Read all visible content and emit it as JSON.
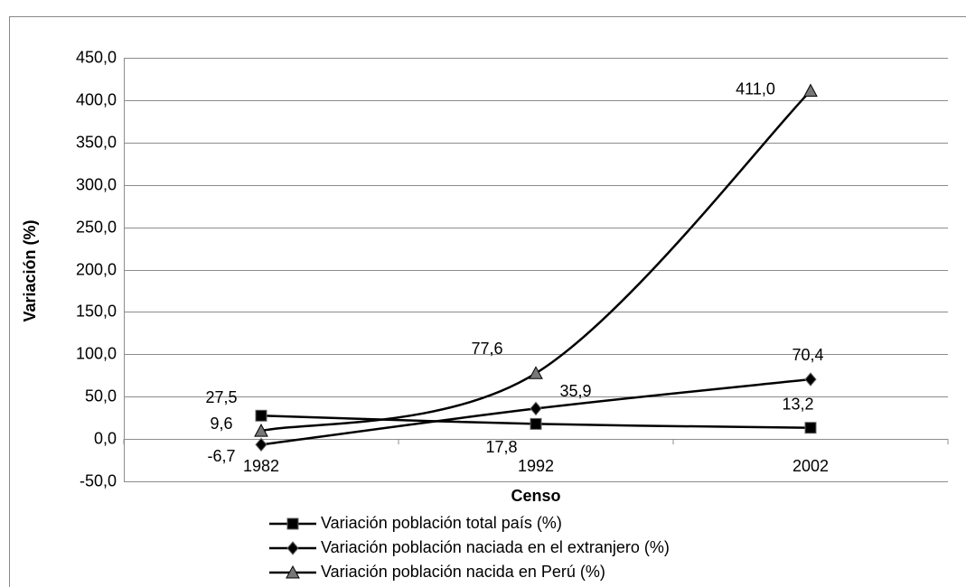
{
  "chart_data": {
    "type": "line",
    "x_label": "Censo",
    "y_label": "Variación (%)",
    "categories": [
      "1982",
      "1992",
      "2002"
    ],
    "series": [
      {
        "name": "Variación población total país (%)",
        "color": "#000000",
        "marker": "square",
        "values": [
          27.5,
          17.8,
          13.2
        ],
        "value_labels": [
          "27,5",
          "17,8",
          "13,2"
        ]
      },
      {
        "name": "Variación población naciada en el extranjero (%)",
        "color": "#000000",
        "marker": "diamond",
        "values": [
          -6.7,
          35.9,
          70.4
        ],
        "value_labels": [
          "-6,7",
          "35,9",
          "70,4"
        ]
      },
      {
        "name": "Variación población nacida en Perú (%)",
        "color": "#000000",
        "marker": "triangle",
        "values": [
          9.6,
          77.6,
          411.0
        ],
        "value_labels": [
          "9,6",
          "77,6",
          "411,0"
        ]
      }
    ],
    "ylim": [
      -50,
      450
    ],
    "yticks": [
      {
        "value": -50,
        "label": "-50,0"
      },
      {
        "value": 0,
        "label": "0,0"
      },
      {
        "value": 50,
        "label": "50,0"
      },
      {
        "value": 100,
        "label": "100,0"
      },
      {
        "value": 150,
        "label": "150,0"
      },
      {
        "value": 200,
        "label": "200,0"
      },
      {
        "value": 250,
        "label": "250,0"
      },
      {
        "value": 300,
        "label": "300,0"
      },
      {
        "value": 350,
        "label": "350,0"
      },
      {
        "value": 400,
        "label": "400,0"
      },
      {
        "value": 450,
        "label": "450,0"
      }
    ],
    "grid": true,
    "smooth": true,
    "legend": "bottom"
  }
}
